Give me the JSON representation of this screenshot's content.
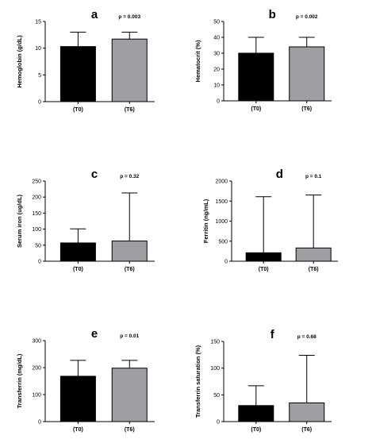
{
  "chart_data": [
    {
      "type": "bar",
      "panel_label": "a",
      "ylabel": "Hemoglobin (g/dL)",
      "categories": [
        "(T0)",
        "(T6)"
      ],
      "values": [
        10.3,
        11.7
      ],
      "error_upper": [
        13.0,
        13.0
      ],
      "colors": [
        "#000000",
        "#9e9ea3"
      ],
      "ylim": [
        0,
        15
      ],
      "yticks": [
        "0",
        "5",
        "10",
        "15"
      ],
      "p_value": "p = 0.003"
    },
    {
      "type": "bar",
      "panel_label": "b",
      "ylabel": "Hematocrit (%)",
      "categories": [
        "(T0)",
        "(T6)"
      ],
      "values": [
        30,
        34
      ],
      "error_upper": [
        40,
        40
      ],
      "colors": [
        "#000000",
        "#9e9ea3"
      ],
      "ylim": [
        0,
        50
      ],
      "yticks": [
        "0",
        "10",
        "20",
        "30",
        "40",
        "50"
      ],
      "p_value": "p = 0.002"
    },
    {
      "type": "bar",
      "panel_label": "c",
      "ylabel": "Serum iron (ug/dL)",
      "categories": [
        "(T0)",
        "(T6)"
      ],
      "values": [
        57,
        63
      ],
      "error_upper": [
        101,
        213
      ],
      "colors": [
        "#000000",
        "#9e9ea3"
      ],
      "ylim": [
        0,
        250
      ],
      "yticks": [
        "0",
        "50",
        "100",
        "150",
        "200",
        "250"
      ],
      "p_value": "p = 0.32"
    },
    {
      "type": "bar",
      "panel_label": "d",
      "ylabel": "Ferritin (ng/mL)",
      "categories": [
        "(T0)",
        "(T6)"
      ],
      "values": [
        210,
        330
      ],
      "error_upper": [
        1610,
        1650
      ],
      "colors": [
        "#000000",
        "#9e9ea3"
      ],
      "ylim": [
        0,
        2000
      ],
      "yticks": [
        "0",
        "500",
        "1000",
        "1500",
        "2000"
      ],
      "p_value": "p = 0.1"
    },
    {
      "type": "bar",
      "panel_label": "e",
      "ylabel": "Transferrin (mg/dL)",
      "categories": [
        "(T0)",
        "(T6)"
      ],
      "values": [
        168,
        198
      ],
      "error_upper": [
        227,
        227
      ],
      "colors": [
        "#000000",
        "#9e9ea3"
      ],
      "ylim": [
        0,
        300
      ],
      "yticks": [
        "0",
        "100",
        "200",
        "300"
      ],
      "p_value": "p = 0.01"
    },
    {
      "type": "bar",
      "panel_label": "f",
      "ylabel": "Transferrin saturation (%)",
      "categories": [
        "(T0)",
        "(T6)"
      ],
      "values": [
        30,
        35
      ],
      "error_upper": [
        67,
        124
      ],
      "colors": [
        "#000000",
        "#9e9ea3"
      ],
      "ylim": [
        0,
        150
      ],
      "yticks": [
        "0",
        "50",
        "100",
        "150"
      ],
      "p_value": "p = 0.68"
    }
  ]
}
